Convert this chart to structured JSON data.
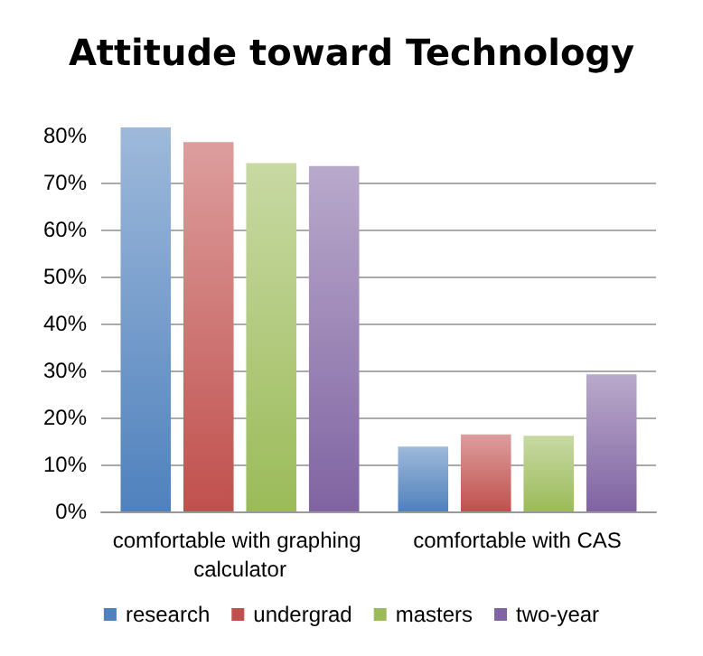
{
  "chart_data": {
    "type": "bar",
    "title": "Attitude toward Technology",
    "categories": [
      "comfortable with graphing calculator",
      "comfortable with CAS"
    ],
    "series": [
      {
        "name": "research",
        "color": "#4f81bd",
        "values": [
          81.8,
          13.8
        ]
      },
      {
        "name": "undergrad",
        "color": "#c0504d",
        "values": [
          78.7,
          16.4
        ]
      },
      {
        "name": "masters",
        "color": "#9bbb59",
        "values": [
          74.2,
          16.1
        ]
      },
      {
        "name": "two-year",
        "color": "#8064a2",
        "values": [
          73.6,
          29.2
        ]
      }
    ],
    "ylim": [
      0,
      82
    ],
    "yticks": [
      {
        "value": 0,
        "label": "0%"
      },
      {
        "value": 10,
        "label": "10%"
      },
      {
        "value": 20,
        "label": "20%"
      },
      {
        "value": 30,
        "label": "30%"
      },
      {
        "value": 40,
        "label": "40%"
      },
      {
        "value": 50,
        "label": "50%"
      },
      {
        "value": 60,
        "label": "60%"
      },
      {
        "value": 70,
        "label": "70%"
      },
      {
        "value": 80,
        "label": "80%"
      }
    ],
    "grid": "y",
    "legend": "bottom"
  }
}
